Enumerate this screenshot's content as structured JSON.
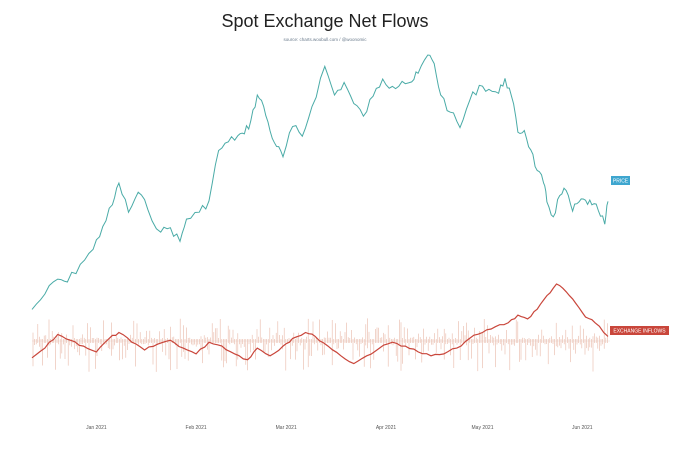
{
  "chart_data": {
    "type": "line",
    "title": "Spot Exchange Net Flows",
    "subtitle": "source: charts.woobull.com / @woonomic",
    "xlabel": "",
    "ylabel": "",
    "grid": false,
    "x_ticks": [
      "Jan 2021",
      "Feb 2021",
      "Mar 2021",
      "Apr 2021",
      "May 2021",
      "Jun 2021"
    ],
    "x_range": [
      "2020-12-12",
      "2021-06-09"
    ],
    "colors": {
      "price": "#4aaba7",
      "inflows": "#c9463b",
      "flow_bars": "#e8b8a8",
      "badge_price": "#3ea6cf",
      "badge_inflows": "#c9463b"
    },
    "series": [
      {
        "name": "PRICE",
        "values": [
          [
            "2020-12-12",
            18500
          ],
          [
            "2020-12-16",
            21200
          ],
          [
            "2020-12-20",
            23800
          ],
          [
            "2020-12-23",
            23300
          ],
          [
            "2020-12-27",
            26400
          ],
          [
            "2020-12-31",
            29000
          ],
          [
            "2021-01-03",
            33000
          ],
          [
            "2021-01-06",
            36800
          ],
          [
            "2021-01-08",
            40600
          ],
          [
            "2021-01-11",
            35500
          ],
          [
            "2021-01-14",
            39000
          ],
          [
            "2021-01-17",
            36000
          ],
          [
            "2021-01-21",
            32000
          ],
          [
            "2021-01-24",
            32800
          ],
          [
            "2021-01-27",
            30400
          ],
          [
            "2021-01-29",
            34300
          ],
          [
            "2021-02-02",
            35500
          ],
          [
            "2021-02-05",
            37500
          ],
          [
            "2021-02-08",
            46300
          ],
          [
            "2021-02-11",
            47800
          ],
          [
            "2021-02-14",
            48900
          ],
          [
            "2021-02-16",
            49200
          ],
          [
            "2021-02-18",
            51500
          ],
          [
            "2021-02-20",
            56000
          ],
          [
            "2021-02-22",
            54000
          ],
          [
            "2021-02-24",
            49700
          ],
          [
            "2021-02-26",
            47000
          ],
          [
            "2021-02-28",
            45200
          ],
          [
            "2021-03-03",
            50500
          ],
          [
            "2021-03-06",
            48800
          ],
          [
            "2021-03-09",
            54000
          ],
          [
            "2021-03-13",
            61000
          ],
          [
            "2021-03-16",
            56000
          ],
          [
            "2021-03-19",
            58200
          ],
          [
            "2021-03-22",
            54500
          ],
          [
            "2021-03-25",
            52300
          ],
          [
            "2021-03-28",
            55800
          ],
          [
            "2021-03-31",
            58800
          ],
          [
            "2021-04-03",
            57500
          ],
          [
            "2021-04-06",
            58400
          ],
          [
            "2021-04-09",
            58300
          ],
          [
            "2021-04-11",
            59800
          ],
          [
            "2021-04-14",
            63000
          ],
          [
            "2021-04-16",
            61500
          ],
          [
            "2021-04-18",
            56000
          ],
          [
            "2021-04-21",
            53000
          ],
          [
            "2021-04-24",
            50300
          ],
          [
            "2021-04-27",
            55000
          ],
          [
            "2021-04-30",
            57700
          ],
          [
            "2021-05-03",
            57000
          ],
          [
            "2021-05-06",
            56300
          ],
          [
            "2021-05-08",
            58900
          ],
          [
            "2021-05-10",
            55800
          ],
          [
            "2021-05-12",
            49500
          ],
          [
            "2021-05-14",
            49800
          ],
          [
            "2021-05-16",
            46400
          ],
          [
            "2021-05-18",
            42800
          ],
          [
            "2021-05-20",
            40600
          ],
          [
            "2021-05-21",
            37300
          ],
          [
            "2021-05-23",
            34700
          ],
          [
            "2021-05-25",
            38400
          ],
          [
            "2021-05-27",
            39300
          ],
          [
            "2021-05-29",
            35700
          ],
          [
            "2021-05-31",
            37300
          ],
          [
            "2021-06-02",
            37600
          ],
          [
            "2021-06-04",
            36800
          ],
          [
            "2021-06-06",
            35800
          ],
          [
            "2021-06-08",
            33400
          ],
          [
            "2021-06-09",
            37400
          ]
        ]
      },
      {
        "name": "EXCHANGE INFLOWS",
        "values": [
          [
            "2020-12-12",
            -0.4
          ],
          [
            "2020-12-16",
            0.1
          ],
          [
            "2020-12-20",
            0.8
          ],
          [
            "2020-12-24",
            0.5
          ],
          [
            "2020-12-28",
            0.2
          ],
          [
            "2021-01-01",
            -0.1
          ],
          [
            "2021-01-05",
            0.6
          ],
          [
            "2021-01-08",
            0.9
          ],
          [
            "2021-01-12",
            0.4
          ],
          [
            "2021-01-16",
            0.0
          ],
          [
            "2021-01-20",
            0.3
          ],
          [
            "2021-01-24",
            0.5
          ],
          [
            "2021-01-28",
            0.1
          ],
          [
            "2021-02-01",
            -0.2
          ],
          [
            "2021-02-05",
            0.4
          ],
          [
            "2021-02-09",
            0.2
          ],
          [
            "2021-02-13",
            -0.2
          ],
          [
            "2021-02-17",
            -0.5
          ],
          [
            "2021-02-20",
            0.1
          ],
          [
            "2021-02-24",
            -0.3
          ],
          [
            "2021-02-28",
            0.2
          ],
          [
            "2021-03-03",
            0.6
          ],
          [
            "2021-03-07",
            0.9
          ],
          [
            "2021-03-10",
            0.7
          ],
          [
            "2021-03-14",
            0.2
          ],
          [
            "2021-03-18",
            -0.3
          ],
          [
            "2021-03-22",
            -0.7
          ],
          [
            "2021-03-26",
            -0.3
          ],
          [
            "2021-03-30",
            0.1
          ],
          [
            "2021-04-03",
            0.4
          ],
          [
            "2021-04-07",
            0.2
          ],
          [
            "2021-04-11",
            -0.1
          ],
          [
            "2021-04-15",
            -0.3
          ],
          [
            "2021-04-19",
            -0.2
          ],
          [
            "2021-04-23",
            0.1
          ],
          [
            "2021-04-27",
            0.6
          ],
          [
            "2021-05-01",
            0.9
          ],
          [
            "2021-05-05",
            1.2
          ],
          [
            "2021-05-09",
            1.4
          ],
          [
            "2021-05-12",
            1.8
          ],
          [
            "2021-05-15",
            1.6
          ],
          [
            "2021-05-18",
            2.1
          ],
          [
            "2021-05-21",
            2.8
          ],
          [
            "2021-05-24",
            3.4
          ],
          [
            "2021-05-27",
            3.0
          ],
          [
            "2021-05-30",
            2.4
          ],
          [
            "2021-06-02",
            1.7
          ],
          [
            "2021-06-05",
            1.4
          ],
          [
            "2021-06-09",
            0.7
          ]
        ]
      }
    ]
  }
}
